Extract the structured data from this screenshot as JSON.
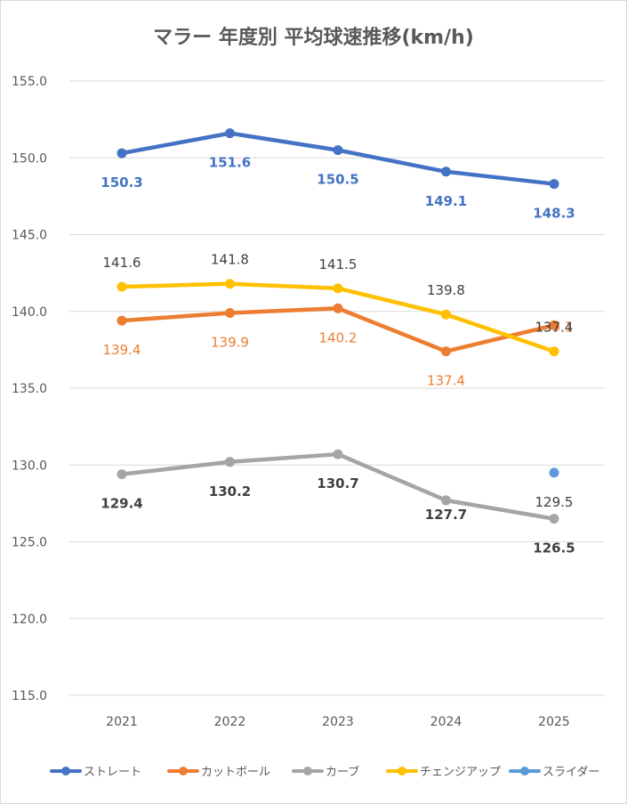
{
  "chart_data": {
    "type": "line",
    "title": "マラー 年度別 平均球速推移(km/h)",
    "xlabel": "",
    "ylabel": "",
    "categories": [
      "2021",
      "2022",
      "2023",
      "2024",
      "2025"
    ],
    "ylim": [
      115,
      155
    ],
    "yticks": [
      "115.0",
      "120.0",
      "125.0",
      "130.0",
      "135.0",
      "140.0",
      "145.0",
      "150.0",
      "155.0"
    ],
    "grid": true,
    "legend": "bottom",
    "series": [
      {
        "name": "ストレート",
        "color": "#4472c4",
        "label_color": "#4472c4",
        "label_bold": true,
        "values": [
          150.3,
          151.6,
          150.5,
          149.1,
          148.3
        ],
        "labels": [
          "150.3",
          "151.6",
          "150.5",
          "149.1",
          "148.3"
        ]
      },
      {
        "name": "カットボール",
        "color": "#ed7d31",
        "label_color": "#ed7d31",
        "label_bold": false,
        "values": [
          139.4,
          139.9,
          140.2,
          137.4,
          139.1
        ],
        "labels": [
          "139.4",
          "139.9",
          "140.2",
          "137.4",
          "139.1"
        ]
      },
      {
        "name": "カーブ",
        "color": "#a5a5a5",
        "label_color": "#404040",
        "label_bold": true,
        "values": [
          129.4,
          130.2,
          130.7,
          127.7,
          126.5
        ],
        "labels": [
          "129.4",
          "130.2",
          "130.7",
          "127.7",
          "126.5"
        ]
      },
      {
        "name": "チェンジアップ",
        "color": "#ffc000",
        "label_color": "#404040",
        "label_bold": false,
        "values": [
          141.6,
          141.8,
          141.5,
          139.8,
          137.4
        ],
        "labels": [
          "141.6",
          "141.8",
          "141.5",
          "139.8",
          "137.4"
        ]
      },
      {
        "name": "スライダー",
        "color": "#5b9bd5",
        "label_color": "#404040",
        "label_bold": false,
        "values": [
          null,
          null,
          null,
          null,
          129.5
        ],
        "labels": [
          null,
          null,
          null,
          null,
          "129.5"
        ]
      }
    ]
  }
}
